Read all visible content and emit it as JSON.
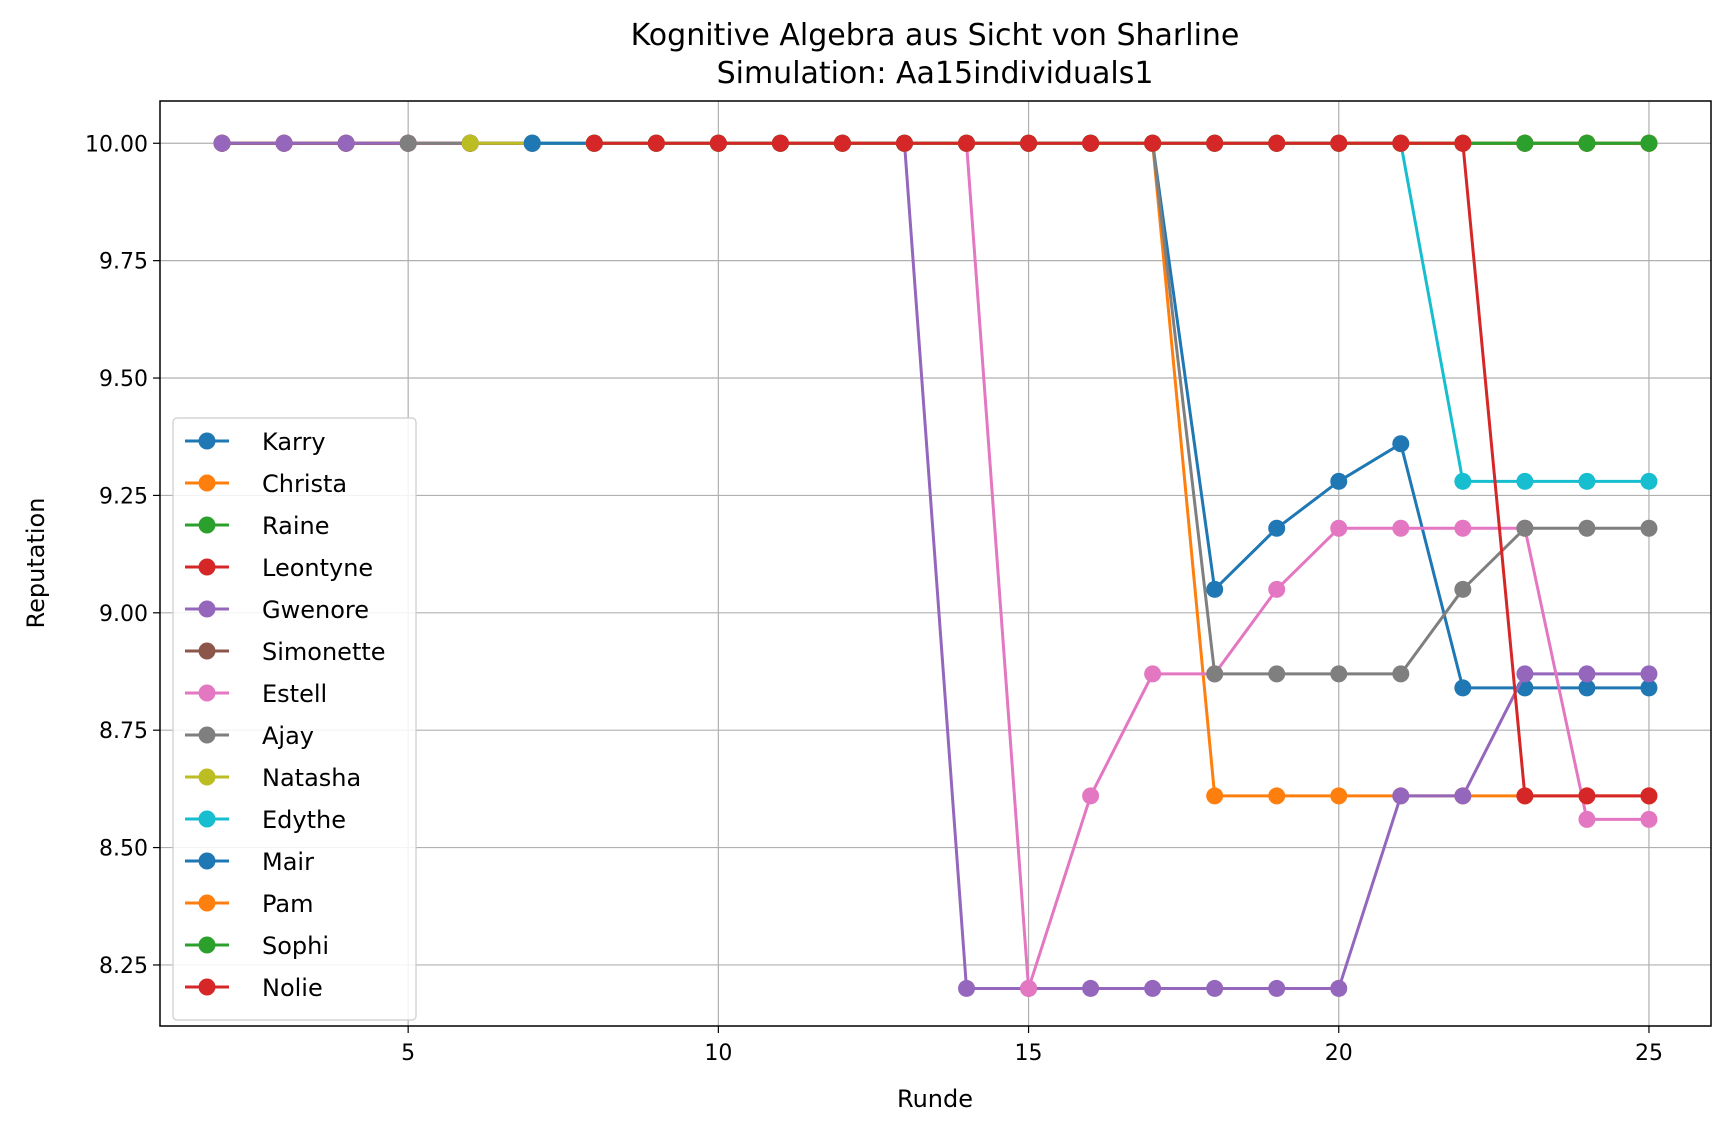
{
  "chart_data": {
    "type": "line",
    "title": "Kognitive Algebra aus Sicht von Sharline",
    "subtitle": "Simulation: Aa15individuals1",
    "xlabel": "Runde",
    "ylabel": "Reputation",
    "xlim": [
      1.0,
      26.0
    ],
    "ylim": [
      8.12,
      10.09
    ],
    "xticks": [
      5,
      10,
      15,
      20,
      25
    ],
    "yticks": [
      8.25,
      8.5,
      8.75,
      9.0,
      9.25,
      9.5,
      9.75,
      10.0
    ],
    "ytick_labels": [
      "8.25",
      "8.50",
      "8.75",
      "9.00",
      "9.25",
      "9.50",
      "9.75",
      "10.00"
    ],
    "grid": true,
    "legend_position": "lower-left",
    "series": [
      {
        "name": "Karry",
        "color": "#1f77b4",
        "x": [
          2,
          3,
          4,
          5,
          6,
          7,
          8,
          9,
          10,
          11,
          12,
          13,
          14,
          15,
          16,
          17,
          18,
          19,
          20,
          21,
          22,
          23,
          24,
          25
        ],
        "y": [
          10,
          10,
          10,
          10,
          10,
          10,
          10,
          10,
          10,
          10,
          10,
          10,
          10,
          10,
          10,
          10,
          9.05,
          9.18,
          9.28,
          9.36,
          8.84,
          8.84,
          8.84,
          8.84
        ]
      },
      {
        "name": "Christa",
        "color": "#ff7f0e",
        "x": [
          2,
          3,
          4,
          5,
          6,
          7,
          8,
          9,
          10,
          11,
          12,
          13,
          14,
          15,
          16,
          17,
          18,
          19,
          20,
          21,
          22,
          23,
          24,
          25
        ],
        "y": [
          10,
          10,
          10,
          10,
          10,
          10,
          10,
          10,
          10,
          10,
          10,
          10,
          10,
          10,
          10,
          10,
          8.61,
          8.61,
          8.61,
          8.61,
          8.61,
          8.61,
          8.61,
          8.61
        ]
      },
      {
        "name": "Raine",
        "color": "#2ca02c",
        "x": [
          2,
          3,
          4,
          5,
          6,
          7,
          8,
          9,
          10,
          11,
          12,
          13,
          14,
          15,
          16,
          17,
          18,
          19,
          20,
          21,
          22,
          23,
          24,
          25
        ],
        "y": [
          10,
          10,
          10,
          10,
          10,
          10,
          10,
          10,
          10,
          10,
          10,
          10,
          10,
          10,
          10,
          10,
          10,
          10,
          10,
          10,
          10,
          10,
          10,
          10
        ]
      },
      {
        "name": "Leontyne",
        "color": "#d62728",
        "x": [
          2,
          3,
          4,
          5,
          6,
          7,
          8,
          9,
          10,
          11,
          12,
          13,
          14,
          15,
          16,
          17,
          18,
          19,
          20,
          21,
          22,
          23,
          24,
          25
        ],
        "y": [
          10,
          10,
          10,
          10,
          10,
          10,
          10,
          10,
          10,
          10,
          10,
          10,
          10,
          10,
          10,
          10,
          10,
          10,
          10,
          10,
          10,
          10,
          10,
          10
        ]
      },
      {
        "name": "Gwenore",
        "color": "#9467bd",
        "x": [
          2,
          3,
          4,
          5,
          6,
          7,
          8,
          9,
          10,
          11,
          12,
          13,
          14,
          15,
          16,
          17,
          18,
          19,
          20,
          21,
          22,
          23,
          24,
          25
        ],
        "y": [
          10,
          10,
          10,
          10,
          10,
          10,
          10,
          10,
          10,
          10,
          10,
          10,
          8.2,
          8.2,
          8.2,
          8.2,
          8.2,
          8.2,
          8.2,
          8.61,
          8.61,
          8.87,
          8.87,
          8.87
        ]
      },
      {
        "name": "Simonette",
        "color": "#8c564b",
        "x": [
          5,
          6,
          7,
          8,
          9,
          10,
          11,
          12,
          13,
          14,
          15,
          16,
          17,
          18,
          19,
          20,
          21,
          22,
          23,
          24,
          25
        ],
        "y": [
          10,
          10,
          10,
          10,
          10,
          10,
          10,
          10,
          10,
          10,
          10,
          10,
          10,
          10,
          10,
          10,
          10,
          10,
          10,
          10,
          10
        ]
      },
      {
        "name": "Estell",
        "color": "#e377c2",
        "x": [
          5,
          6,
          7,
          8,
          9,
          10,
          11,
          12,
          13,
          14,
          15,
          16,
          17,
          18,
          19,
          20,
          21,
          22,
          23,
          24,
          25
        ],
        "y": [
          10,
          10,
          10,
          10,
          10,
          10,
          10,
          10,
          10,
          10,
          8.2,
          8.61,
          8.87,
          8.87,
          9.05,
          9.18,
          9.18,
          9.18,
          9.18,
          8.56,
          8.56
        ]
      },
      {
        "name": "Ajay",
        "color": "#7f7f7f",
        "x": [
          5,
          6,
          7,
          8,
          9,
          10,
          11,
          12,
          13,
          14,
          15,
          16,
          17,
          18,
          19,
          20,
          21,
          22,
          23,
          24,
          25
        ],
        "y": [
          10,
          10,
          10,
          10,
          10,
          10,
          10,
          10,
          10,
          10,
          10,
          10,
          10,
          8.87,
          8.87,
          8.87,
          8.87,
          9.05,
          9.18,
          9.18,
          9.18
        ]
      },
      {
        "name": "Natasha",
        "color": "#bcbd22",
        "x": [
          6,
          7,
          8,
          9,
          10,
          11,
          12,
          13,
          14,
          15,
          16,
          17,
          18,
          19,
          20,
          21,
          22,
          23,
          24,
          25
        ],
        "y": [
          10,
          10,
          10,
          10,
          10,
          10,
          10,
          10,
          10,
          10,
          10,
          10,
          10,
          10,
          10,
          10,
          10,
          10,
          10,
          10
        ]
      },
      {
        "name": "Edythe",
        "color": "#17becf",
        "x": [
          7,
          8,
          9,
          10,
          11,
          12,
          13,
          14,
          15,
          16,
          17,
          18,
          19,
          20,
          21,
          22,
          23,
          24,
          25
        ],
        "y": [
          10,
          10,
          10,
          10,
          10,
          10,
          10,
          10,
          10,
          10,
          10,
          10,
          10,
          10,
          10,
          9.28,
          9.28,
          9.28,
          9.28
        ]
      },
      {
        "name": "Mair",
        "color": "#1f77b4",
        "x": [
          7,
          8,
          9,
          10,
          11,
          12,
          13,
          14,
          15,
          16,
          17,
          18,
          19,
          20,
          21,
          22,
          23,
          24,
          25
        ],
        "y": [
          10,
          10,
          10,
          10,
          10,
          10,
          10,
          10,
          10,
          10,
          10,
          10,
          10,
          10,
          10,
          10,
          10,
          10,
          10
        ]
      },
      {
        "name": "Pam",
        "color": "#ff7f0e",
        "x": [
          8,
          9,
          10,
          11,
          12,
          13,
          14,
          15,
          16,
          17,
          18,
          19,
          20,
          21,
          22,
          23,
          24,
          25
        ],
        "y": [
          10,
          10,
          10,
          10,
          10,
          10,
          10,
          10,
          10,
          10,
          10,
          10,
          10,
          10,
          10,
          10,
          10,
          10
        ]
      },
      {
        "name": "Sophi",
        "color": "#2ca02c",
        "x": [
          8,
          9,
          10,
          11,
          12,
          13,
          14,
          15,
          16,
          17,
          18,
          19,
          20,
          21,
          22,
          23,
          24,
          25
        ],
        "y": [
          10,
          10,
          10,
          10,
          10,
          10,
          10,
          10,
          10,
          10,
          10,
          10,
          10,
          10,
          10,
          10,
          10,
          10
        ]
      },
      {
        "name": "Nolie",
        "color": "#d62728",
        "x": [
          8,
          9,
          10,
          11,
          12,
          13,
          14,
          15,
          16,
          17,
          18,
          19,
          20,
          21,
          22,
          23,
          24,
          25
        ],
        "y": [
          10,
          10,
          10,
          10,
          10,
          10,
          10,
          10,
          10,
          10,
          10,
          10,
          10,
          10,
          10,
          8.61,
          8.61,
          8.61
        ]
      }
    ]
  }
}
